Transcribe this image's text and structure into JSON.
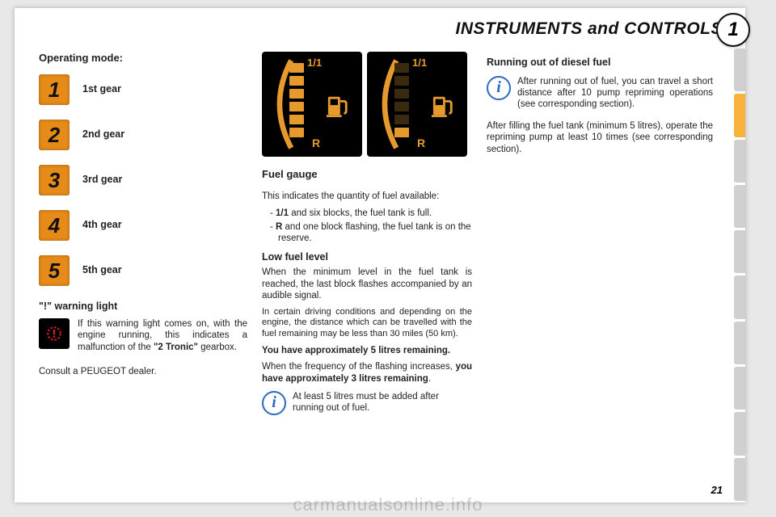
{
  "header": {
    "title": "INSTRUMENTS and CONTROLS",
    "chapter": "1"
  },
  "page_number": "21",
  "watermark": "carmanualsonline.info",
  "col1": {
    "heading": "Operating mode:",
    "gears": [
      {
        "num": "1",
        "label": "1st gear"
      },
      {
        "num": "2",
        "label": "2nd gear"
      },
      {
        "num": "3",
        "label": "3rd gear"
      },
      {
        "num": "4",
        "label": "4th gear"
      },
      {
        "num": "5",
        "label": "5th gear"
      }
    ],
    "warn_heading": "\"!\" warning light",
    "warn_text_a": "If this warning light comes on, with the engine running, this indicates a malfunction of the ",
    "warn_text_bold": "\"2 Tronic\"",
    "warn_text_b": " gearbox.",
    "consult": "Consult a PEUGEOT dealer."
  },
  "col2": {
    "fuel": {
      "top_label": "1/1",
      "reserve_label": "R",
      "panel_bg": "#000000",
      "segment_on": "#e69a2e",
      "segment_off": "#3a2a10",
      "arc_color": "#e69a2e",
      "left_on": 6,
      "right_on": 1,
      "segments": 6
    },
    "heading": "Fuel gauge",
    "intro": "This indicates the quantity of fuel available:",
    "bullets": [
      {
        "b": "1/1",
        "t": " and six blocks, the fuel tank is full."
      },
      {
        "b": "R",
        "t": " and one block flashing, the fuel tank is on the reserve."
      }
    ],
    "low_heading": "Low fuel level",
    "low_p1": "When the minimum level in the fuel tank is reached, the last block flashes accompanied by an audible signal.",
    "low_p2": "In certain driving conditions and depend­ing on the engine, the distance which can be travelled with the fuel remaining may be less than 30 miles (50 km).",
    "low_bold1": "You have approximately 5 litres remaining.",
    "low_p3a": "When the frequency of the flashing increases, ",
    "low_bold2": "you have approximately 3 litres remaining",
    "low_p3b": ".",
    "info": "At least 5 litres must be added after running out of fuel."
  },
  "col3": {
    "heading": "Running out of diesel fuel",
    "info": "After running out of fuel, you can travel a short distance after 10 pump repriming operations (see corresponding section).",
    "p": "After filling the fuel tank (minimum 5 litres), operate the repriming pump at least 10 times (see corresponding section)."
  },
  "colors": {
    "page_bg": "#ffffff",
    "body_bg": "#e8e8e8",
    "gear_bg": "#e68a1a",
    "tab_inactive": "#d0d0d0",
    "tab_active": "#f6b23a",
    "info_blue": "#2a6bbf"
  }
}
